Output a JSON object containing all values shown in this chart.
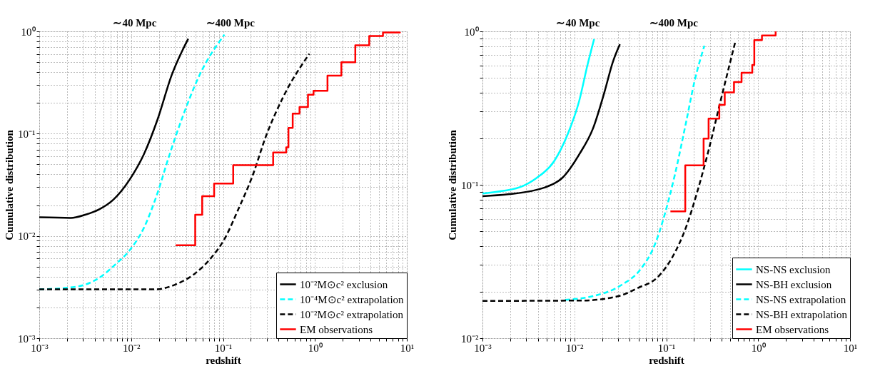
{
  "chart_data": [
    {
      "type": "line",
      "xlabel": "redshift",
      "ylabel": "Cumulative distribution",
      "log": "xy",
      "grid": true,
      "legend": "bottom right",
      "xlim": [
        0.001,
        10
      ],
      "ylim": [
        0.001,
        1
      ],
      "xticks": [
        {
          "value": 0.001,
          "label": "10⁻³"
        },
        {
          "value": 0.002,
          "label": null
        },
        {
          "value": 0.003,
          "label": null
        },
        {
          "value": 0.004,
          "label": null
        },
        {
          "value": 0.005,
          "label": null
        },
        {
          "value": 0.006,
          "label": null
        },
        {
          "value": 0.007,
          "label": null
        },
        {
          "value": 0.008,
          "label": null
        },
        {
          "value": 0.009,
          "label": null
        },
        {
          "value": 0.01,
          "label": "10⁻²"
        },
        {
          "value": 0.02,
          "label": null
        },
        {
          "value": 0.03,
          "label": null
        },
        {
          "value": 0.04,
          "label": null
        },
        {
          "value": 0.05,
          "label": null
        },
        {
          "value": 0.06,
          "label": null
        },
        {
          "value": 0.07,
          "label": null
        },
        {
          "value": 0.08,
          "label": null
        },
        {
          "value": 0.09,
          "label": null
        },
        {
          "value": 0.1,
          "label": "10⁻¹"
        },
        {
          "value": 0.2,
          "label": null
        },
        {
          "value": 0.3,
          "label": null
        },
        {
          "value": 0.4,
          "label": null
        },
        {
          "value": 0.5,
          "label": null
        },
        {
          "value": 0.6,
          "label": null
        },
        {
          "value": 0.7,
          "label": null
        },
        {
          "value": 0.8,
          "label": null
        },
        {
          "value": 0.9,
          "label": null
        },
        {
          "value": 1,
          "label": "10⁰"
        },
        {
          "value": 2,
          "label": null
        },
        {
          "value": 3,
          "label": null
        },
        {
          "value": 4,
          "label": null
        },
        {
          "value": 5,
          "label": null
        },
        {
          "value": 6,
          "label": null
        },
        {
          "value": 7,
          "label": null
        },
        {
          "value": 8,
          "label": null
        },
        {
          "value": 9,
          "label": null
        },
        {
          "value": 10,
          "label": "10¹"
        }
      ],
      "yticks": [
        {
          "value": 0.001,
          "label": "10⁻³"
        },
        {
          "value": 0.002,
          "label": null
        },
        {
          "value": 0.003,
          "label": null
        },
        {
          "value": 0.004,
          "label": null
        },
        {
          "value": 0.005,
          "label": null
        },
        {
          "value": 0.006,
          "label": null
        },
        {
          "value": 0.007,
          "label": null
        },
        {
          "value": 0.008,
          "label": null
        },
        {
          "value": 0.009,
          "label": null
        },
        {
          "value": 0.01,
          "label": "10⁻²"
        },
        {
          "value": 0.02,
          "label": null
        },
        {
          "value": 0.03,
          "label": null
        },
        {
          "value": 0.04,
          "label": null
        },
        {
          "value": 0.05,
          "label": null
        },
        {
          "value": 0.06,
          "label": null
        },
        {
          "value": 0.07,
          "label": null
        },
        {
          "value": 0.08,
          "label": null
        },
        {
          "value": 0.09,
          "label": null
        },
        {
          "value": 0.1,
          "label": "10⁻¹"
        },
        {
          "value": 0.2,
          "label": null
        },
        {
          "value": 0.3,
          "label": null
        },
        {
          "value": 0.4,
          "label": null
        },
        {
          "value": 0.5,
          "label": null
        },
        {
          "value": 0.6,
          "label": null
        },
        {
          "value": 0.7,
          "label": null
        },
        {
          "value": 0.8,
          "label": null
        },
        {
          "value": 0.9,
          "label": null
        },
        {
          "value": 1,
          "label": "10⁰"
        }
      ],
      "annotations": [
        "∼40 Mpc",
        "∼400 Mpc"
      ],
      "series": [
        {
          "name": "10⁻²M⊙c² exclusion",
          "color": "#000000",
          "line_style": "solid",
          "x": [
            0.001,
            0.0022,
            0.00316,
            0.0045,
            0.0064,
            0.0097,
            0.0137,
            0.0194,
            0.0275,
            0.0418
          ],
          "values": [
            0.0152,
            0.015,
            0.0161,
            0.0182,
            0.0226,
            0.0359,
            0.0623,
            0.138,
            0.37,
            0.847
          ]
        },
        {
          "name": "10⁻⁴M⊙c² extrapolation",
          "color": "#00ffff",
          "line_style": "dashed",
          "x": [
            0.001,
            0.0026,
            0.0045,
            0.0068,
            0.0097,
            0.0137,
            0.0194,
            0.0256,
            0.0364,
            0.0552,
            0.1035
          ],
          "values": [
            0.003,
            0.0032,
            0.0039,
            0.0053,
            0.0073,
            0.0119,
            0.0264,
            0.0586,
            0.147,
            0.37,
            0.93
          ]
        },
        {
          "name": "10⁻²M⊙c² extrapolation",
          "color": "#000000",
          "line_style": "dashed",
          "x": [
            0.001,
            0.0181,
            0.0316,
            0.048,
            0.073,
            0.1035,
            0.147,
            0.208,
            0.295,
            0.449,
            0.869
          ],
          "values": [
            0.003,
            0.003,
            0.0034,
            0.0042,
            0.006,
            0.0093,
            0.0183,
            0.0381,
            0.0958,
            0.226,
            0.604
          ]
        },
        {
          "name": "EM observations",
          "color": "#ff0000",
          "line_style": "solid",
          "type": "step",
          "x": [
            0.0305,
            0.0498,
            0.0593,
            0.08,
            0.129,
            0.351,
            0.487,
            0.515,
            0.573,
            0.68,
            0.84,
            0.966,
            1.37,
            1.94,
            2.75,
            3.9,
            5.5,
            8.4
          ],
          "values": [
            0.0081,
            0.0161,
            0.0245,
            0.0325,
            0.0491,
            0.0655,
            0.0736,
            0.114,
            0.157,
            0.182,
            0.24,
            0.263,
            0.37,
            0.5,
            0.73,
            0.9,
            0.975,
            0.99
          ]
        }
      ]
    },
    {
      "type": "line",
      "xlabel": "redshift",
      "ylabel": "Cumulative distribution",
      "log": "xy",
      "grid": true,
      "legend": "bottom right",
      "xlim": [
        0.001,
        10
      ],
      "ylim": [
        0.01,
        1
      ],
      "xticks": [
        {
          "value": 0.001,
          "label": "10⁻³"
        },
        {
          "value": 0.002,
          "label": null
        },
        {
          "value": 0.003,
          "label": null
        },
        {
          "value": 0.004,
          "label": null
        },
        {
          "value": 0.005,
          "label": null
        },
        {
          "value": 0.006,
          "label": null
        },
        {
          "value": 0.007,
          "label": null
        },
        {
          "value": 0.008,
          "label": null
        },
        {
          "value": 0.009,
          "label": null
        },
        {
          "value": 0.01,
          "label": "10⁻²"
        },
        {
          "value": 0.02,
          "label": null
        },
        {
          "value": 0.03,
          "label": null
        },
        {
          "value": 0.04,
          "label": null
        },
        {
          "value": 0.05,
          "label": null
        },
        {
          "value": 0.06,
          "label": null
        },
        {
          "value": 0.07,
          "label": null
        },
        {
          "value": 0.08,
          "label": null
        },
        {
          "value": 0.09,
          "label": null
        },
        {
          "value": 0.1,
          "label": "10⁻¹"
        },
        {
          "value": 0.2,
          "label": null
        },
        {
          "value": 0.3,
          "label": null
        },
        {
          "value": 0.4,
          "label": null
        },
        {
          "value": 0.5,
          "label": null
        },
        {
          "value": 0.6,
          "label": null
        },
        {
          "value": 0.7,
          "label": null
        },
        {
          "value": 0.8,
          "label": null
        },
        {
          "value": 0.9,
          "label": null
        },
        {
          "value": 1,
          "label": "10⁰"
        },
        {
          "value": 2,
          "label": null
        },
        {
          "value": 3,
          "label": null
        },
        {
          "value": 4,
          "label": null
        },
        {
          "value": 5,
          "label": null
        },
        {
          "value": 6,
          "label": null
        },
        {
          "value": 7,
          "label": null
        },
        {
          "value": 8,
          "label": null
        },
        {
          "value": 9,
          "label": null
        },
        {
          "value": 10,
          "label": "10¹"
        }
      ],
      "yticks": [
        {
          "value": 0.01,
          "label": "10⁻²"
        },
        {
          "value": 0.02,
          "label": null
        },
        {
          "value": 0.03,
          "label": null
        },
        {
          "value": 0.04,
          "label": null
        },
        {
          "value": 0.05,
          "label": null
        },
        {
          "value": 0.06,
          "label": null
        },
        {
          "value": 0.07,
          "label": null
        },
        {
          "value": 0.08,
          "label": null
        },
        {
          "value": 0.09,
          "label": null
        },
        {
          "value": 0.1,
          "label": "10⁻¹"
        },
        {
          "value": 0.2,
          "label": null
        },
        {
          "value": 0.3,
          "label": null
        },
        {
          "value": 0.4,
          "label": null
        },
        {
          "value": 0.5,
          "label": null
        },
        {
          "value": 0.6,
          "label": null
        },
        {
          "value": 0.7,
          "label": null
        },
        {
          "value": 0.8,
          "label": null
        },
        {
          "value": 0.9,
          "label": null
        },
        {
          "value": 1,
          "label": "10⁰"
        }
      ],
      "annotations": [
        "∼40 Mpc",
        "∼400 Mpc"
      ],
      "series": [
        {
          "name": "NS-NS exclusion",
          "color": "#00ffff",
          "line_style": "solid",
          "x": [
            0.001,
            0.00167,
            0.00274,
            0.0039,
            0.006,
            0.0085,
            0.0113,
            0.0139,
            0.0164
          ],
          "values": [
            0.0878,
            0.0912,
            0.098,
            0.111,
            0.142,
            0.215,
            0.353,
            0.604,
            0.89
          ]
        },
        {
          "name": "NS-BH exclusion",
          "color": "#000000",
          "line_style": "solid",
          "x": [
            0.001,
            0.0019,
            0.0048,
            0.0074,
            0.0113,
            0.016,
            0.0212,
            0.0262,
            0.0313
          ],
          "values": [
            0.0843,
            0.0867,
            0.0962,
            0.111,
            0.158,
            0.234,
            0.4,
            0.63,
            0.824
          ]
        },
        {
          "name": "NS-NS extrapolation",
          "color": "#00ffff",
          "line_style": "dashed",
          "x": [
            0.0079,
            0.016,
            0.0325,
            0.0532,
            0.0757,
            0.0969,
            0.124,
            0.164,
            0.203,
            0.26
          ],
          "values": [
            0.0178,
            0.0188,
            0.0222,
            0.0284,
            0.0412,
            0.065,
            0.116,
            0.254,
            0.472,
            0.807
          ]
        },
        {
          "name": "NS-BH extrapolation",
          "color": "#000000",
          "line_style": "dashed",
          "x": [
            0.001,
            0.0121,
            0.0302,
            0.0495,
            0.0812,
            0.116,
            0.164,
            0.218,
            0.289,
            0.384,
            0.565
          ],
          "values": [
            0.0175,
            0.0176,
            0.0188,
            0.0213,
            0.0251,
            0.0336,
            0.0528,
            0.0904,
            0.168,
            0.339,
            0.859
          ]
        },
        {
          "name": "EM observations",
          "color": "#ff0000",
          "line_style": "solid",
          "type": "step",
          "x": [
            0.111,
            0.161,
            0.255,
            0.289,
            0.378,
            0.433,
            0.546,
            0.66,
            0.863,
            0.908,
            1.1,
            1.55
          ],
          "values": [
            0.0671,
            0.134,
            0.2,
            0.27,
            0.332,
            0.4,
            0.468,
            0.538,
            0.604,
            0.877,
            0.94,
            1.0
          ]
        }
      ]
    }
  ]
}
